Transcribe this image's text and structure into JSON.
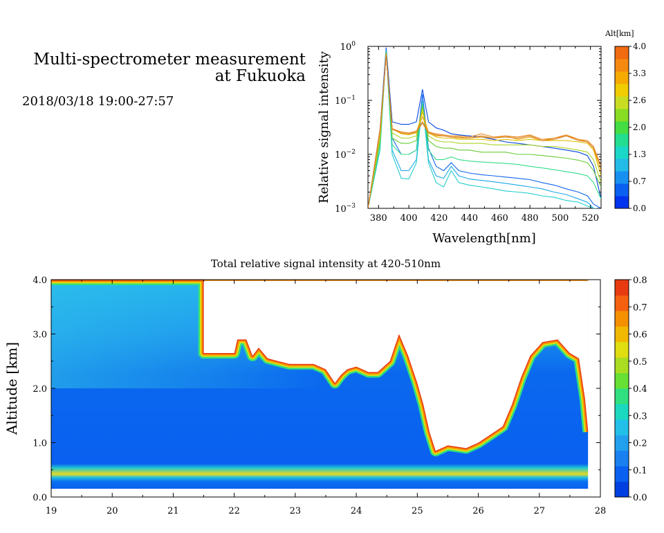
{
  "header": {
    "title_line1": "Multi-spectrometer measurement",
    "title_line2": "at Fukuoka",
    "subtitle": "2018/03/18 19:00-27:57"
  },
  "chart_data": [
    {
      "type": "line",
      "xlabel": "Wavelength[nm]",
      "ylabel": "Relative signal intensity",
      "xlim": [
        373,
        527
      ],
      "xticks": [
        "380",
        "400",
        "420",
        "440",
        "460",
        "480",
        "500",
        "520"
      ],
      "yscale": "log",
      "ylim": [
        0.001,
        1
      ],
      "yticks": [
        {
          "base": "10",
          "exp": "0"
        },
        {
          "base": "10",
          "exp": "−1"
        },
        {
          "base": "10",
          "exp": "−2"
        },
        {
          "base": "10",
          "exp": "−3"
        }
      ],
      "grid": false,
      "colorbar": {
        "label": "Alt[km]",
        "ticks": [
          "4.0",
          "3.3",
          "2.6",
          "2.0",
          "1.3",
          "0.7",
          "0.0"
        ],
        "colors": [
          "#0033ee",
          "#0a60f0",
          "#1890f0",
          "#22bbe8",
          "#1ad8c8",
          "#22dd90",
          "#44dd44",
          "#88dd22",
          "#c8dd22",
          "#f0cc00",
          "#f5aa00",
          "#f58a10",
          "#f06a10"
        ]
      },
      "x": [
        373,
        381,
        385,
        389,
        395,
        400,
        405,
        409,
        413,
        418,
        423,
        428,
        433,
        440,
        448,
        456,
        464,
        472,
        480,
        488,
        496,
        504,
        512,
        518,
        522,
        527
      ],
      "series": [
        {
          "color": "#0044dd",
          "values": [
            0.001,
            0.03,
            0.95,
            0.04,
            0.036,
            0.036,
            0.04,
            0.16,
            0.04,
            0.031,
            0.028,
            0.024,
            0.023,
            0.022,
            0.021,
            0.019,
            0.017,
            0.016,
            0.015,
            0.014,
            0.013,
            0.012,
            0.011,
            0.0095,
            0.006,
            0.0015
          ]
        },
        {
          "color": "#1166ee",
          "values": [
            0.001,
            0.02,
            0.9,
            0.02,
            0.01,
            0.01,
            0.012,
            0.13,
            0.013,
            0.006,
            0.005,
            0.007,
            0.005,
            0.0045,
            0.0042,
            0.004,
            0.0038,
            0.0036,
            0.0034,
            0.003,
            0.0027,
            0.0023,
            0.002,
            0.0017,
            0.0012,
            0.0008
          ]
        },
        {
          "color": "#1aa8e8",
          "values": [
            0.001,
            0.015,
            0.85,
            0.012,
            0.005,
            0.005,
            0.008,
            0.1,
            0.008,
            0.004,
            0.0036,
            0.006,
            0.004,
            0.0035,
            0.0033,
            0.0031,
            0.0029,
            0.0027,
            0.0025,
            0.0023,
            0.002,
            0.0018,
            0.0015,
            0.0013,
            0.001,
            0.0008
          ]
        },
        {
          "color": "#22cccc",
          "values": [
            0.001,
            0.012,
            0.82,
            0.01,
            0.0036,
            0.0035,
            0.007,
            0.09,
            0.007,
            0.003,
            0.0025,
            0.005,
            0.003,
            0.0027,
            0.0025,
            0.0023,
            0.0021,
            0.002,
            0.0019,
            0.0017,
            0.0016,
            0.0014,
            0.0013,
            0.0011,
            0.001,
            0.0008
          ]
        },
        {
          "color": "#33dd88",
          "values": [
            0.001,
            0.015,
            0.8,
            0.015,
            0.01,
            0.01,
            0.012,
            0.09,
            0.012,
            0.008,
            0.008,
            0.009,
            0.008,
            0.0075,
            0.0072,
            0.007,
            0.0068,
            0.0065,
            0.006,
            0.0056,
            0.0052,
            0.0048,
            0.0044,
            0.004,
            0.003,
            0.0015
          ]
        },
        {
          "color": "#66cc33",
          "values": [
            0.001,
            0.018,
            0.78,
            0.02,
            0.016,
            0.016,
            0.018,
            0.08,
            0.018,
            0.014,
            0.013,
            0.013,
            0.012,
            0.012,
            0.011,
            0.011,
            0.011,
            0.01,
            0.01,
            0.0095,
            0.009,
            0.0085,
            0.0078,
            0.007,
            0.005,
            0.0025
          ]
        },
        {
          "color": "#aad422",
          "values": [
            0.001,
            0.02,
            0.75,
            0.025,
            0.02,
            0.02,
            0.022,
            0.07,
            0.022,
            0.018,
            0.017,
            0.017,
            0.016,
            0.016,
            0.016,
            0.015,
            0.015,
            0.015,
            0.015,
            0.014,
            0.014,
            0.013,
            0.012,
            0.011,
            0.008,
            0.003
          ]
        },
        {
          "color": "#e0c000",
          "values": [
            0.001,
            0.025,
            0.72,
            0.03,
            0.024,
            0.023,
            0.025,
            0.06,
            0.025,
            0.021,
            0.02,
            0.02,
            0.019,
            0.019,
            0.019,
            0.018,
            0.019,
            0.018,
            0.019,
            0.018,
            0.018,
            0.018,
            0.017,
            0.016,
            0.012,
            0.004
          ]
        },
        {
          "color": "#f0a000",
          "values": [
            0.001,
            0.028,
            0.7,
            0.03,
            0.025,
            0.024,
            0.026,
            0.05,
            0.026,
            0.022,
            0.022,
            0.021,
            0.02,
            0.02,
            0.021,
            0.02,
            0.022,
            0.019,
            0.021,
            0.018,
            0.02,
            0.022,
            0.019,
            0.017,
            0.013,
            0.005
          ]
        },
        {
          "color": "#e88a20",
          "values": [
            0.001,
            0.03,
            0.68,
            0.03,
            0.026,
            0.025,
            0.027,
            0.04,
            0.026,
            0.024,
            0.023,
            0.022,
            0.022,
            0.021,
            0.024,
            0.021,
            0.022,
            0.021,
            0.023,
            0.019,
            0.02,
            0.023,
            0.019,
            0.018,
            0.014,
            0.006
          ]
        },
        {
          "color": "#d9802a",
          "values": [
            0.001,
            0.028,
            0.66,
            0.029,
            0.025,
            0.024,
            0.026,
            0.038,
            0.025,
            0.023,
            0.022,
            0.021,
            0.021,
            0.02,
            0.022,
            0.02,
            0.021,
            0.02,
            0.022,
            0.018,
            0.019,
            0.022,
            0.018,
            0.017,
            0.013,
            0.006
          ]
        }
      ]
    },
    {
      "type": "heatmap",
      "title": "Total relative signal intensity at 420-510nm",
      "ylabel": "Altitude [km]",
      "xlim": [
        19,
        28
      ],
      "xticks": [
        "19",
        "20",
        "21",
        "22",
        "23",
        "24",
        "25",
        "26",
        "27",
        "28"
      ],
      "ylim": [
        0,
        4
      ],
      "yticks": [
        "4.0",
        "3.0",
        "2.0",
        "1.0",
        "0.0"
      ],
      "data_end_x": 27.8,
      "data_bottom_km": 0.15,
      "colorbar": {
        "ticks": [
          "0.8",
          "0.7",
          "0.6",
          "0.5",
          "0.4",
          "0.3",
          "0.2",
          "0.1",
          "0.0"
        ],
        "colors": [
          "#0040e0",
          "#0a60f0",
          "#1a80f0",
          "#22a0ee",
          "#22c0e8",
          "#1ad8c0",
          "#30e080",
          "#66e033",
          "#aadd22",
          "#e0dd10",
          "#f0b800",
          "#f59000",
          "#f56010",
          "#e83a10"
        ]
      },
      "cloud_boundary_km": [
        [
          19.0,
          4.0
        ],
        [
          21.5,
          4.0
        ],
        [
          21.5,
          2.65
        ],
        [
          22.0,
          2.65
        ],
        [
          22.05,
          2.9
        ],
        [
          22.2,
          2.9
        ],
        [
          22.3,
          2.6
        ],
        [
          22.4,
          2.75
        ],
        [
          22.55,
          2.55
        ],
        [
          22.9,
          2.45
        ],
        [
          23.3,
          2.45
        ],
        [
          23.5,
          2.35
        ],
        [
          23.65,
          2.1
        ],
        [
          23.75,
          2.25
        ],
        [
          23.85,
          2.35
        ],
        [
          24.0,
          2.4
        ],
        [
          24.2,
          2.3
        ],
        [
          24.35,
          2.3
        ],
        [
          24.55,
          2.5
        ],
        [
          24.7,
          3.0
        ],
        [
          24.85,
          2.6
        ],
        [
          25.0,
          2.1
        ],
        [
          25.1,
          1.7
        ],
        [
          25.2,
          1.2
        ],
        [
          25.3,
          0.85
        ],
        [
          25.5,
          0.95
        ],
        [
          25.8,
          0.9
        ],
        [
          26.0,
          1.0
        ],
        [
          26.2,
          1.15
        ],
        [
          26.4,
          1.3
        ],
        [
          26.55,
          1.7
        ],
        [
          26.7,
          2.2
        ],
        [
          26.85,
          2.6
        ],
        [
          27.05,
          2.85
        ],
        [
          27.3,
          2.9
        ],
        [
          27.5,
          2.65
        ],
        [
          27.65,
          2.55
        ],
        [
          27.75,
          1.8
        ],
        [
          27.8,
          1.2
        ]
      ]
    }
  ]
}
